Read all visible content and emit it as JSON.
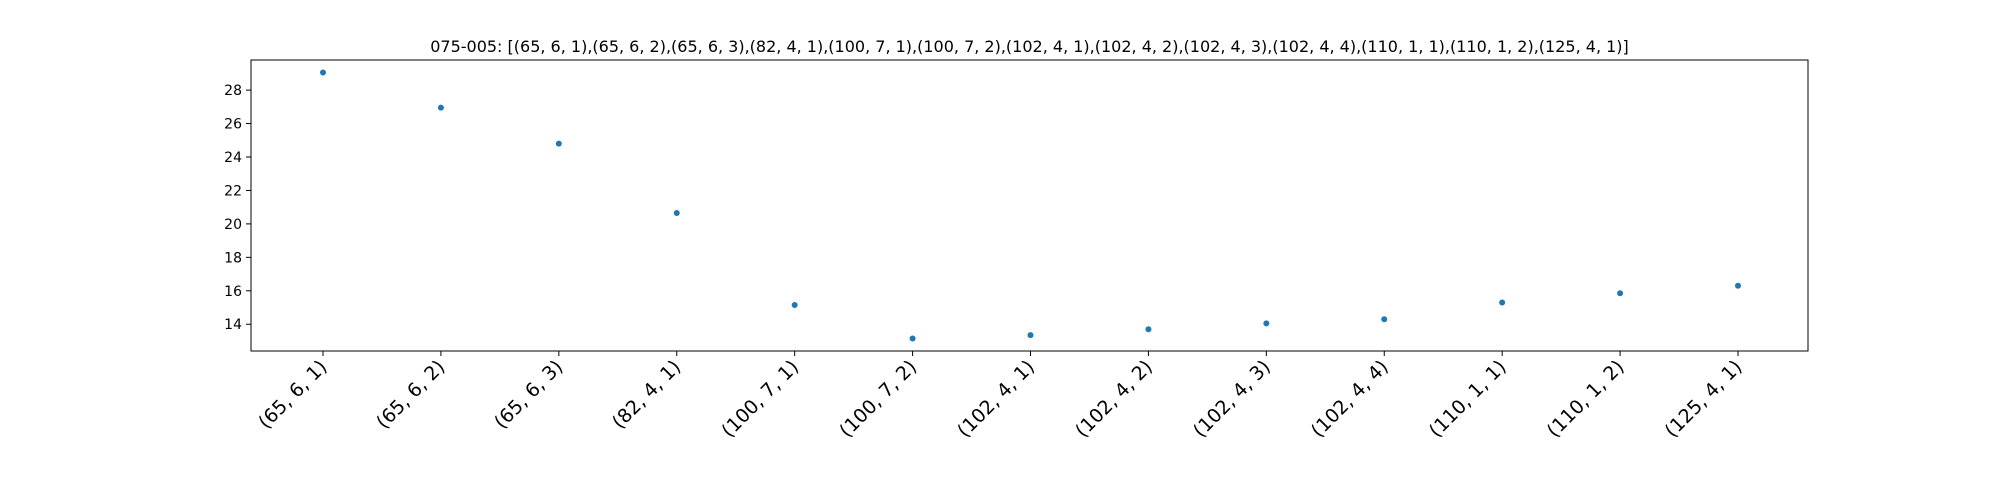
{
  "chart_data": {
    "type": "scatter",
    "title": "075-005: [(65, 6, 1),(65, 6, 2),(65, 6, 3),(82, 4, 1),(100, 7, 1),(100, 7, 2),(102, 4, 1),(102, 4, 2),(102, 4, 3),(102, 4, 4),(110, 1, 1),(110, 1, 2),(125, 4, 1)]",
    "xlabel": "",
    "ylabel": "",
    "categories": [
      "(65, 6, 1)",
      "(65, 6, 2)",
      "(65, 6, 3)",
      "(82, 4, 1)",
      "(100, 7, 1)",
      "(100, 7, 2)",
      "(102, 4, 1)",
      "(102, 4, 2)",
      "(102, 4, 3)",
      "(102, 4, 4)",
      "(110, 1, 1)",
      "(110, 1, 2)",
      "(125, 4, 1)"
    ],
    "values": [
      29.05,
      26.95,
      24.8,
      20.65,
      15.15,
      13.15,
      13.35,
      13.7,
      14.05,
      14.3,
      15.3,
      15.85,
      16.3
    ],
    "ylim": [
      12.4,
      29.8
    ],
    "yticks": [
      14,
      16,
      18,
      20,
      22,
      24,
      26,
      28
    ],
    "grid": false,
    "legend": "none",
    "marker_color": "#1f77b4"
  }
}
